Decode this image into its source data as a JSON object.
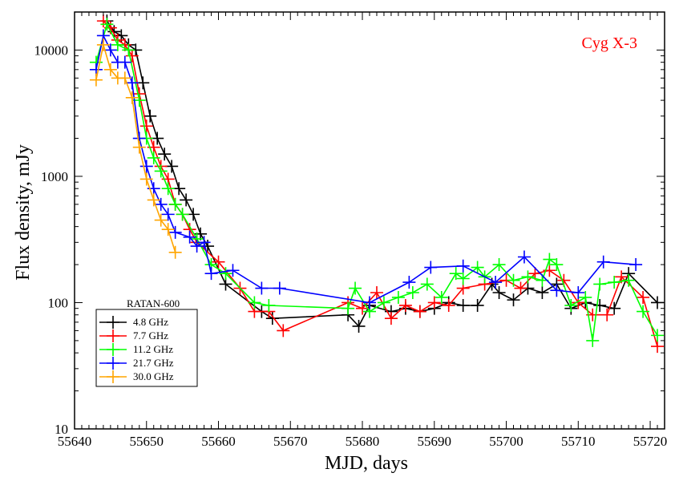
{
  "chart_data": {
    "type": "line",
    "title": "",
    "annotation": {
      "text": "Cyg X-3",
      "color": "#ff0000"
    },
    "xlabel": "MJD,  days",
    "ylabel": "Flux density, mJy",
    "xlim": [
      55640,
      55722
    ],
    "ylim": [
      10,
      20000
    ],
    "yscale": "log",
    "grid": false,
    "legend_placement": "bottom-left",
    "legend_title": "RATAN-600",
    "xticks": [
      55640,
      55650,
      55660,
      55670,
      55680,
      55690,
      55700,
      55710,
      55720
    ],
    "xtick_labels": [
      "55640",
      "55650",
      "55660",
      "55670",
      "55680",
      "55690",
      "55700",
      "55710",
      "55720"
    ],
    "yticks": [
      10,
      100,
      1000,
      10000
    ],
    "ytick_labels": [
      "10",
      "100",
      "1000",
      "10000"
    ],
    "series": [
      {
        "name": "4.8 GHz",
        "color": "#000000",
        "x": [
          55644.5,
          55645.5,
          55646.5,
          55647.5,
          55648.5,
          55649.5,
          55650.5,
          55651.5,
          55652.5,
          55653.5,
          55654.5,
          55655.5,
          55656.5,
          55657.5,
          55658.5,
          55661,
          55666,
          55667.5,
          55678,
          55679.5,
          55681,
          55684,
          55686,
          55688,
          55690,
          55692,
          55694,
          55696,
          55698,
          55699,
          55701,
          55703,
          55705,
          55707,
          55709,
          55711,
          55713,
          55715,
          55717,
          55721
        ],
        "y": [
          17000,
          14000,
          13000,
          11000,
          10000,
          5500,
          3000,
          2000,
          1500,
          1200,
          800,
          650,
          500,
          350,
          280,
          140,
          85,
          75,
          80,
          65,
          95,
          85,
          90,
          85,
          90,
          100,
          95,
          95,
          140,
          120,
          105,
          130,
          120,
          140,
          90,
          100,
          95,
          90,
          170,
          100
        ]
      },
      {
        "name": "7.7 GHz",
        "color": "#ff0000",
        "x": [
          55644,
          55645,
          55646,
          55647,
          55648,
          55649,
          55650,
          55651,
          55652,
          55653,
          55654,
          55655,
          55656,
          55657,
          55660,
          55663,
          55665,
          55667,
          55669,
          55678,
          55680,
          55682,
          55684,
          55686,
          55688,
          55690,
          55692,
          55694,
          55697,
          55700,
          55702,
          55704,
          55706,
          55708,
          55710,
          55712,
          55714,
          55716,
          55719,
          55721
        ],
        "y": [
          17000,
          15000,
          12000,
          11000,
          9000,
          4500,
          2500,
          1700,
          1200,
          950,
          600,
          500,
          380,
          300,
          210,
          130,
          85,
          85,
          60,
          100,
          90,
          120,
          75,
          95,
          85,
          100,
          95,
          130,
          140,
          150,
          130,
          170,
          180,
          150,
          100,
          80,
          80,
          160,
          110,
          45
        ]
      },
      {
        "name": "11.2 GHz",
        "color": "#00ff00",
        "x": [
          55643,
          55644.5,
          55646,
          55647.5,
          55649,
          55650,
          55651,
          55652,
          55653,
          55654,
          55655,
          55657,
          55659,
          55661,
          55665,
          55667,
          55678,
          55679,
          55681,
          55683,
          55685,
          55687,
          55689,
          55691,
          55693,
          55694,
          55696,
          55697,
          55699,
          55701,
          55703,
          55705,
          55706,
          55707,
          55709,
          55711,
          55712,
          55713,
          55715,
          55717,
          55719,
          55721
        ],
        "y": [
          8000,
          16000,
          11000,
          10000,
          4000,
          2000,
          1400,
          1100,
          800,
          600,
          500,
          320,
          200,
          170,
          100,
          95,
          90,
          130,
          85,
          100,
          110,
          120,
          140,
          110,
          170,
          155,
          190,
          160,
          200,
          150,
          160,
          150,
          220,
          200,
          95,
          110,
          50,
          140,
          145,
          150,
          85,
          55
        ]
      },
      {
        "name": "21.7 GHz",
        "color": "#0000ff",
        "x": [
          55643,
          55644,
          55645,
          55646,
          55647,
          55648,
          55649,
          55650,
          55651,
          55652,
          55653,
          55654,
          55656,
          55657,
          55658,
          55659,
          55662,
          55666,
          55668.5,
          55681,
          55686.5,
          55689.5,
          55694,
          55698.5,
          55702.5,
          55707,
          55710,
          55713.5,
          55718
        ],
        "y": [
          7000,
          13000,
          10000,
          8000,
          8000,
          5500,
          2000,
          1200,
          800,
          600,
          500,
          360,
          330,
          280,
          300,
          170,
          180,
          130,
          130,
          100,
          145,
          190,
          195,
          145,
          230,
          125,
          120,
          210,
          200
        ]
      },
      {
        "name": "30.0 GHz",
        "color": "#ffa500",
        "x": [
          55643,
          55644,
          55645,
          55646,
          55647,
          55648,
          55649,
          55650,
          55651,
          55652,
          55653,
          55654
        ],
        "y": [
          5800,
          11000,
          7000,
          6000,
          6000,
          4200,
          1700,
          950,
          650,
          450,
          380,
          250
        ]
      }
    ]
  }
}
